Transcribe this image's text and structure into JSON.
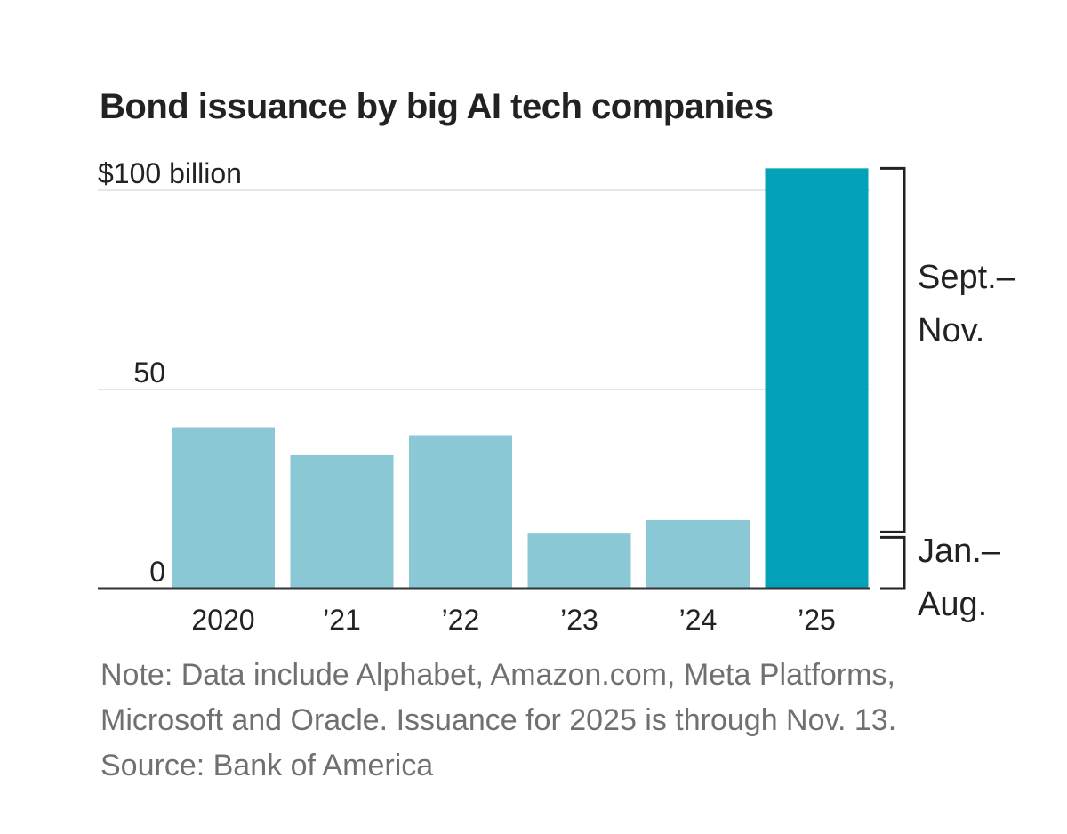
{
  "chart_data": {
    "type": "bar",
    "title": "Bond issuance by big AI tech companies",
    "categories": [
      "2020",
      "’21",
      "’22",
      "’23",
      "’24",
      "’25"
    ],
    "values": [
      40.5,
      33.5,
      38.5,
      13.8,
      17.2,
      105.5
    ],
    "stacked_last": {
      "segments": [
        {
          "name": "Jan.–Aug.",
          "value": 13.3
        },
        {
          "name": "Sept.–Nov.",
          "value": 92.2
        }
      ]
    },
    "ylim": [
      0,
      100
    ],
    "yticks": [
      {
        "value": 100,
        "label": "$100 billion"
      },
      {
        "value": 50,
        "label": "50"
      },
      {
        "value": 0,
        "label": "0"
      }
    ],
    "annotations": [
      {
        "segment": "Sept.–Nov.",
        "lines": [
          "Sept.–",
          "Nov."
        ]
      },
      {
        "segment": "Jan.–Aug.",
        "lines": [
          "Jan.–",
          "Aug."
        ]
      }
    ],
    "colors": {
      "bar": "#8ac8d6",
      "highlight": "#04a2b8",
      "grid": "#e6e6e6",
      "axis": "#333333",
      "bracket": "#222222"
    }
  },
  "footnote": {
    "note_lines": [
      "Note: Data include Alphabet, Amazon.com, Meta Platforms,",
      "Microsoft and Oracle. Issuance for 2025 is through Nov. 13."
    ],
    "source": "Source: Bank of America"
  }
}
